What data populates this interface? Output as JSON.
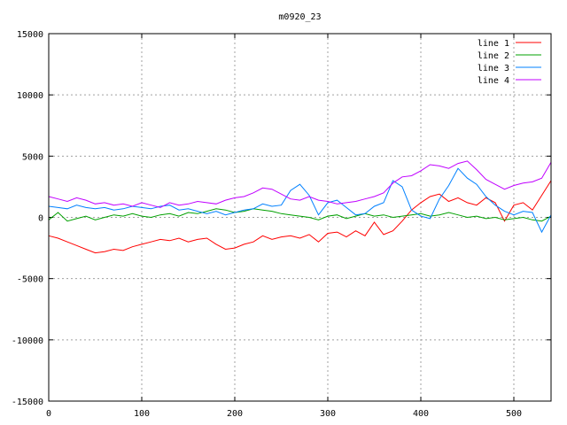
{
  "chart_data": {
    "type": "line",
    "title": "m0920_23",
    "xlabel": "",
    "ylabel": "",
    "xlim": [
      0,
      540
    ],
    "ylim": [
      -15000,
      15000
    ],
    "xticks": [
      0,
      100,
      200,
      300,
      400,
      500
    ],
    "yticks": [
      -15000,
      -10000,
      -5000,
      0,
      5000,
      10000,
      15000
    ],
    "grid": true,
    "legend_position": "top-right",
    "series": [
      {
        "name": "line 1",
        "color": "#ff0000",
        "x": [
          0,
          10,
          20,
          30,
          40,
          50,
          60,
          70,
          80,
          90,
          100,
          110,
          120,
          130,
          140,
          150,
          160,
          170,
          180,
          190,
          200,
          210,
          220,
          230,
          240,
          250,
          260,
          270,
          280,
          290,
          300,
          310,
          320,
          330,
          340,
          350,
          360,
          370,
          380,
          390,
          400,
          410,
          420,
          430,
          440,
          450,
          460,
          470,
          480,
          490,
          500,
          510,
          520,
          530,
          540
        ],
        "y": [
          -1500,
          -1700,
          -2000,
          -2300,
          -2600,
          -2900,
          -2800,
          -2600,
          -2700,
          -2400,
          -2200,
          -2000,
          -1800,
          -1900,
          -1700,
          -2000,
          -1800,
          -1700,
          -2200,
          -2600,
          -2500,
          -2200,
          -2000,
          -1500,
          -1800,
          -1600,
          -1500,
          -1700,
          -1400,
          -2000,
          -1300,
          -1200,
          -1600,
          -1100,
          -1500,
          -400,
          -1400,
          -1100,
          -300,
          600,
          1200,
          1700,
          1900,
          1300,
          1600,
          1200,
          1000,
          1600,
          1200,
          -300,
          1000,
          1200,
          600,
          1800,
          3000
        ]
      },
      {
        "name": "line 2",
        "color": "#00a000",
        "x": [
          0,
          10,
          20,
          30,
          40,
          50,
          60,
          70,
          80,
          90,
          100,
          110,
          120,
          130,
          140,
          150,
          160,
          170,
          180,
          190,
          200,
          210,
          220,
          230,
          240,
          250,
          260,
          270,
          280,
          290,
          300,
          310,
          320,
          330,
          340,
          350,
          360,
          370,
          380,
          390,
          400,
          410,
          420,
          430,
          440,
          450,
          460,
          470,
          480,
          490,
          500,
          510,
          520,
          530,
          540
        ],
        "y": [
          -200,
          400,
          -300,
          -100,
          100,
          -200,
          0,
          200,
          100,
          300,
          100,
          0,
          200,
          300,
          100,
          400,
          300,
          500,
          700,
          600,
          400,
          500,
          700,
          600,
          500,
          300,
          200,
          100,
          0,
          -200,
          100,
          200,
          -100,
          100,
          300,
          100,
          200,
          0,
          100,
          200,
          300,
          100,
          200,
          400,
          200,
          0,
          100,
          -100,
          0,
          -200,
          -100,
          0,
          -200,
          -300,
          100
        ]
      },
      {
        "name": "line 3",
        "color": "#0080ff",
        "x": [
          0,
          10,
          20,
          30,
          40,
          50,
          60,
          70,
          80,
          90,
          100,
          110,
          120,
          130,
          140,
          150,
          160,
          170,
          180,
          190,
          200,
          210,
          220,
          230,
          240,
          250,
          260,
          270,
          280,
          290,
          300,
          310,
          320,
          330,
          340,
          350,
          360,
          370,
          380,
          390,
          400,
          410,
          420,
          430,
          440,
          450,
          460,
          470,
          480,
          490,
          500,
          510,
          520,
          530,
          540
        ],
        "y": [
          900,
          800,
          700,
          1000,
          800,
          700,
          800,
          600,
          700,
          900,
          800,
          700,
          900,
          1000,
          600,
          700,
          500,
          300,
          500,
          200,
          400,
          600,
          700,
          1100,
          900,
          1000,
          2200,
          2700,
          1800,
          200,
          1200,
          1400,
          800,
          200,
          300,
          900,
          1200,
          3000,
          2500,
          600,
          100,
          -100,
          1500,
          2600,
          4000,
          3200,
          2700,
          1700,
          1000,
          500,
          200,
          500,
          400,
          -1200,
          200
        ]
      },
      {
        "name": "line 4",
        "color": "#c000ff",
        "x": [
          0,
          10,
          20,
          30,
          40,
          50,
          60,
          70,
          80,
          90,
          100,
          110,
          120,
          130,
          140,
          150,
          160,
          170,
          180,
          190,
          200,
          210,
          220,
          230,
          240,
          250,
          260,
          270,
          280,
          290,
          300,
          310,
          320,
          330,
          340,
          350,
          360,
          370,
          380,
          390,
          400,
          410,
          420,
          430,
          440,
          450,
          460,
          470,
          480,
          490,
          500,
          510,
          520,
          530,
          540
        ],
        "y": [
          1700,
          1500,
          1300,
          1600,
          1400,
          1100,
          1200,
          1000,
          1100,
          900,
          1200,
          1000,
          800,
          1200,
          1000,
          1100,
          1300,
          1200,
          1100,
          1400,
          1600,
          1700,
          2000,
          2400,
          2300,
          1900,
          1500,
          1400,
          1700,
          1400,
          1300,
          1100,
          1200,
          1300,
          1500,
          1700,
          2000,
          2800,
          3300,
          3400,
          3800,
          4300,
          4200,
          4000,
          4400,
          4600,
          3900,
          3100,
          2700,
          2300,
          2600,
          2800,
          2900,
          3200,
          4500
        ]
      }
    ]
  }
}
